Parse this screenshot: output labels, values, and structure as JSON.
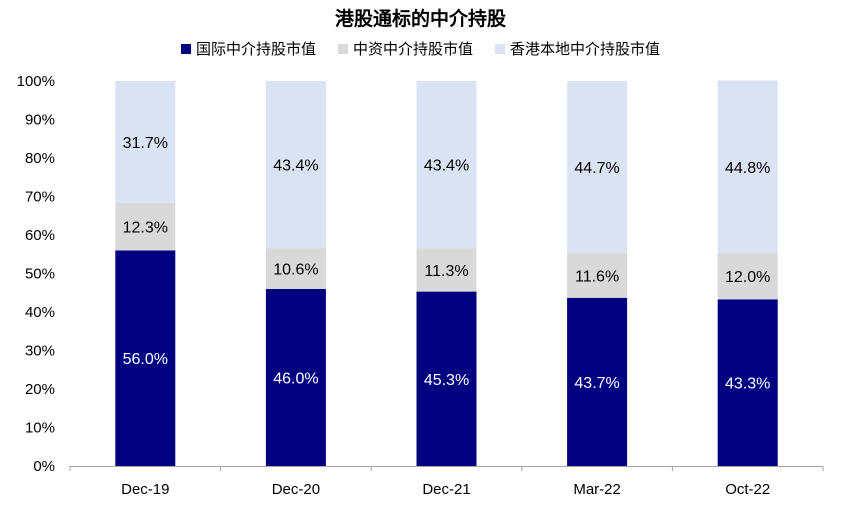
{
  "chart_data": {
    "type": "bar",
    "stacked": true,
    "title": "港股通标的中介持股",
    "categories": [
      "Dec-19",
      "Dec-20",
      "Dec-21",
      "Mar-22",
      "Oct-22"
    ],
    "series": [
      {
        "name": "国际中介持股市值",
        "color": "#000080",
        "label_color": "#ffffff",
        "values": [
          56.0,
          46.0,
          45.3,
          43.7,
          43.3
        ],
        "labels": [
          "56.0%",
          "46.0%",
          "45.3%",
          "43.7%",
          "43.3%"
        ]
      },
      {
        "name": "中资中介持股市值",
        "color": "#d9d9d9",
        "label_color": "#000000",
        "values": [
          12.3,
          10.6,
          11.3,
          11.6,
          12.0
        ],
        "labels": [
          "12.3%",
          "10.6%",
          "11.3%",
          "11.6%",
          "12.0%"
        ]
      },
      {
        "name": "香港本地中介持股市值",
        "color": "#dae3f3",
        "label_color": "#000000",
        "values": [
          31.7,
          43.4,
          43.4,
          44.7,
          44.8
        ],
        "labels": [
          "31.7%",
          "43.4%",
          "43.4%",
          "44.7%",
          "44.8%"
        ]
      }
    ],
    "y_ticks": [
      "0%",
      "10%",
      "20%",
      "30%",
      "40%",
      "50%",
      "60%",
      "70%",
      "80%",
      "90%",
      "100%"
    ],
    "ylim": [
      0,
      100
    ],
    "grid": false,
    "legend_position": "top"
  }
}
